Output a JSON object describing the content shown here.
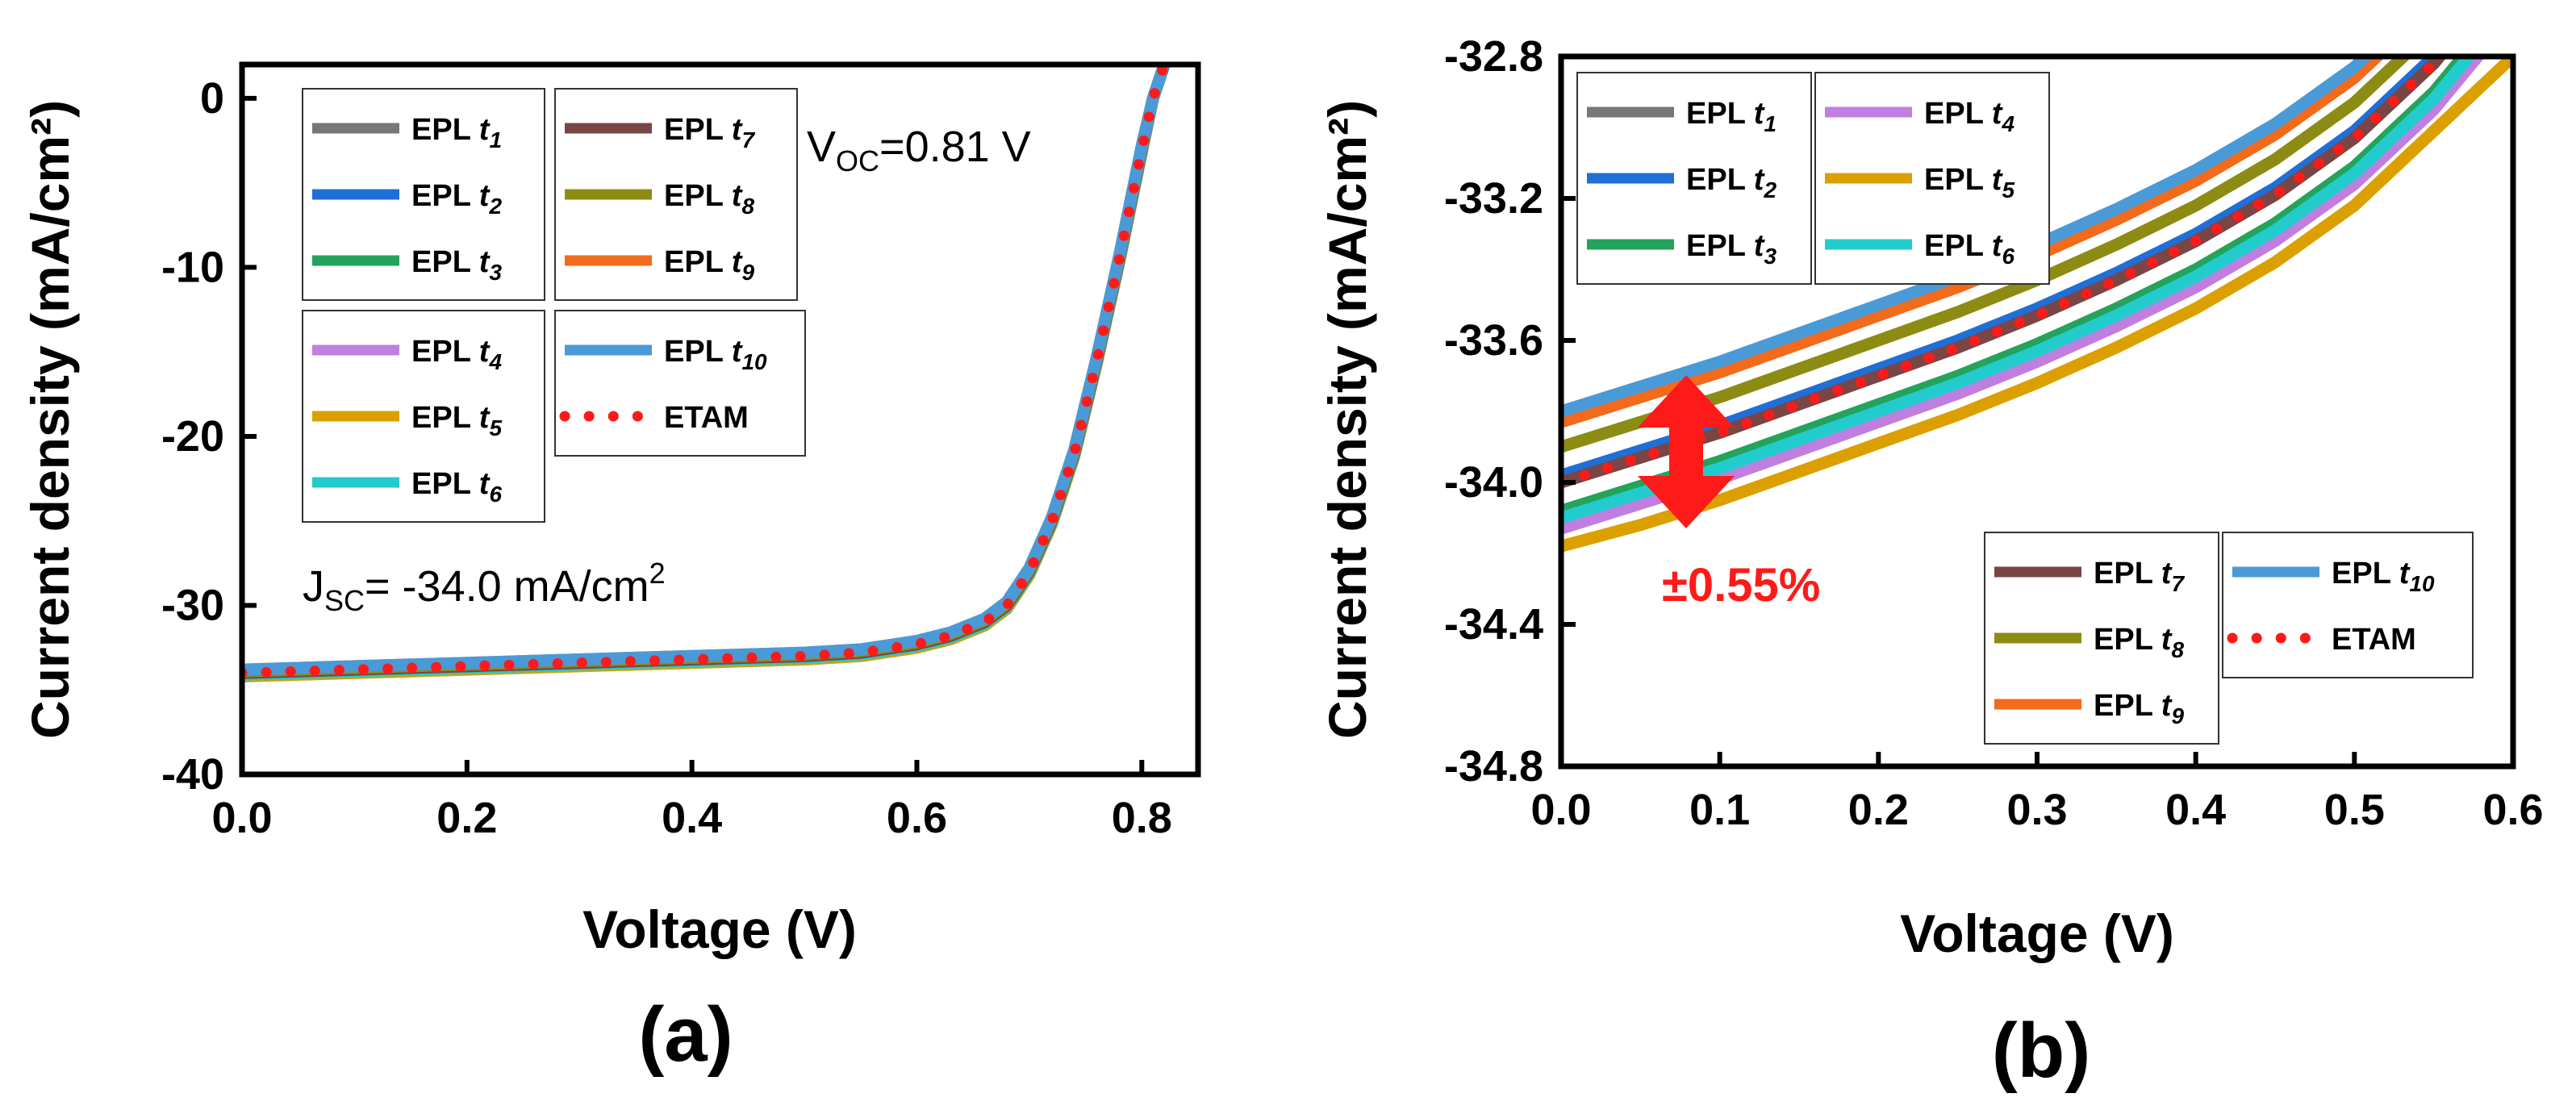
{
  "chart_data": [
    {
      "panel_label": "(a)",
      "type": "line",
      "xlabel": "Voltage (V)",
      "ylabel": "Current density (mA/cm²)",
      "xlim": [
        0.0,
        0.85
      ],
      "ylim": [
        -40,
        2
      ],
      "xticks": [
        "0.0",
        "0.2",
        "0.4",
        "0.6",
        "0.8"
      ],
      "yticks": [
        "0",
        "-10",
        "-20",
        "-30",
        "-40"
      ],
      "annotations": {
        "voc": {
          "main": "V",
          "sub": "OC",
          "rest": "=0.81 V"
        },
        "jsc": {
          "main": "J",
          "sub": "SC",
          "rest": "= -34.0 mA/cm",
          "sup": "2"
        }
      },
      "x": [
        0.0,
        0.1,
        0.2,
        0.3,
        0.4,
        0.5,
        0.55,
        0.6,
        0.63,
        0.66,
        0.68,
        0.7,
        0.72,
        0.74,
        0.76,
        0.78,
        0.8,
        0.81,
        0.82
      ],
      "series": [
        {
          "name": "EPL t1",
          "values": [
            -34.0,
            -33.8,
            -33.6,
            -33.4,
            -33.2,
            -33.0,
            -32.8,
            -32.3,
            -31.8,
            -31.0,
            -30.0,
            -28.0,
            -25.0,
            -21.0,
            -15.5,
            -9.5,
            -3.0,
            0.0,
            2.0
          ]
        },
        {
          "name": "EPL t2",
          "values": [
            -34.0,
            -33.8,
            -33.6,
            -33.4,
            -33.2,
            -33.0,
            -32.8,
            -32.3,
            -31.8,
            -31.0,
            -30.0,
            -28.0,
            -25.0,
            -21.0,
            -15.5,
            -9.5,
            -3.0,
            0.0,
            2.0
          ]
        },
        {
          "name": "EPL t3",
          "values": [
            -34.1,
            -33.9,
            -33.7,
            -33.5,
            -33.3,
            -33.1,
            -32.9,
            -32.4,
            -31.9,
            -31.1,
            -30.1,
            -28.1,
            -25.1,
            -21.1,
            -15.6,
            -9.6,
            -3.1,
            0.0,
            2.0
          ]
        },
        {
          "name": "EPL t4",
          "values": [
            -34.1,
            -33.9,
            -33.7,
            -33.5,
            -33.3,
            -33.1,
            -32.9,
            -32.4,
            -31.9,
            -31.1,
            -30.1,
            -28.1,
            -25.1,
            -21.1,
            -15.6,
            -9.6,
            -3.1,
            0.0,
            2.0
          ]
        },
        {
          "name": "EPL t5",
          "values": [
            -34.2,
            -34.0,
            -33.8,
            -33.6,
            -33.4,
            -33.2,
            -33.0,
            -32.5,
            -32.0,
            -31.2,
            -30.2,
            -28.2,
            -25.2,
            -21.2,
            -15.7,
            -9.7,
            -3.2,
            0.0,
            2.0
          ]
        },
        {
          "name": "EPL t6",
          "values": [
            -34.1,
            -33.9,
            -33.7,
            -33.5,
            -33.3,
            -33.1,
            -32.9,
            -32.4,
            -31.9,
            -31.1,
            -30.1,
            -28.1,
            -25.1,
            -21.1,
            -15.6,
            -9.6,
            -3.1,
            0.0,
            2.0
          ]
        },
        {
          "name": "EPL t7",
          "values": [
            -34.0,
            -33.8,
            -33.6,
            -33.4,
            -33.2,
            -33.0,
            -32.8,
            -32.3,
            -31.8,
            -31.0,
            -30.0,
            -28.0,
            -25.0,
            -21.0,
            -15.5,
            -9.5,
            -3.0,
            0.0,
            2.0
          ]
        },
        {
          "name": "EPL t8",
          "values": [
            -33.9,
            -33.7,
            -33.5,
            -33.3,
            -33.1,
            -32.9,
            -32.7,
            -32.2,
            -31.7,
            -30.9,
            -29.9,
            -27.9,
            -24.9,
            -20.9,
            -15.4,
            -9.4,
            -2.9,
            0.0,
            2.0
          ]
        },
        {
          "name": "EPL t9",
          "values": [
            -33.8,
            -33.6,
            -33.4,
            -33.2,
            -33.0,
            -32.8,
            -32.6,
            -32.1,
            -31.6,
            -30.8,
            -29.8,
            -27.8,
            -24.8,
            -20.8,
            -15.3,
            -9.3,
            -2.8,
            0.0,
            2.0
          ]
        },
        {
          "name": "EPL t10",
          "values": [
            -33.8,
            -33.6,
            -33.4,
            -33.2,
            -33.0,
            -32.8,
            -32.6,
            -32.1,
            -31.6,
            -30.8,
            -29.8,
            -27.8,
            -24.8,
            -20.8,
            -15.3,
            -9.3,
            -2.8,
            0.0,
            2.0
          ]
        },
        {
          "name": "ETAM",
          "style": "dotted",
          "values": [
            -34.0,
            -33.8,
            -33.6,
            -33.4,
            -33.2,
            -33.0,
            -32.8,
            -32.3,
            -31.8,
            -31.0,
            -30.0,
            -28.0,
            -25.0,
            -21.0,
            -15.5,
            -9.5,
            -3.0,
            0.0,
            2.0
          ]
        }
      ]
    },
    {
      "panel_label": "(b)",
      "type": "line",
      "xlabel": "Voltage (V)",
      "ylabel": "Current density (mA/cm²)",
      "xlim": [
        0.0,
        0.6
      ],
      "ylim": [
        -34.8,
        -32.8
      ],
      "xticks": [
        "0.0",
        "0.1",
        "0.2",
        "0.3",
        "0.4",
        "0.5",
        "0.6"
      ],
      "yticks": [
        "-32.8",
        "-33.2",
        "-33.6",
        "-34.0",
        "-34.4",
        "-34.8"
      ],
      "annotations": {
        "spread": "±0.55%"
      },
      "x": [
        0.0,
        0.05,
        0.1,
        0.15,
        0.2,
        0.25,
        0.3,
        0.35,
        0.4,
        0.45,
        0.5,
        0.55,
        0.6
      ],
      "series": [
        {
          "name": "EPL t1",
          "values": [
            -34.0,
            -33.93,
            -33.86,
            -33.78,
            -33.7,
            -33.62,
            -33.53,
            -33.43,
            -33.32,
            -33.19,
            -33.03,
            -32.82,
            -32.55
          ]
        },
        {
          "name": "EPL t2",
          "values": [
            -33.98,
            -33.91,
            -33.84,
            -33.76,
            -33.68,
            -33.6,
            -33.51,
            -33.41,
            -33.3,
            -33.17,
            -33.01,
            -32.8,
            -32.53
          ]
        },
        {
          "name": "EPL t3",
          "values": [
            -34.08,
            -34.01,
            -33.94,
            -33.86,
            -33.78,
            -33.7,
            -33.61,
            -33.51,
            -33.4,
            -33.27,
            -33.11,
            -32.9,
            -32.63
          ]
        },
        {
          "name": "EPL t4",
          "values": [
            -34.13,
            -34.06,
            -33.99,
            -33.91,
            -33.83,
            -33.75,
            -33.66,
            -33.56,
            -33.45,
            -33.32,
            -33.16,
            -32.95,
            -32.68
          ]
        },
        {
          "name": "EPL t5",
          "values": [
            -34.18,
            -34.12,
            -34.05,
            -33.97,
            -33.89,
            -33.81,
            -33.72,
            -33.62,
            -33.51,
            -33.38,
            -33.22,
            -33.01,
            -32.8
          ]
        },
        {
          "name": "EPL t6",
          "values": [
            -34.1,
            -34.03,
            -33.96,
            -33.88,
            -33.8,
            -33.72,
            -33.63,
            -33.53,
            -33.42,
            -33.29,
            -33.13,
            -32.92,
            -32.65
          ]
        },
        {
          "name": "EPL t7",
          "values": [
            -34.0,
            -33.93,
            -33.86,
            -33.78,
            -33.7,
            -33.62,
            -33.53,
            -33.43,
            -33.32,
            -33.19,
            -33.03,
            -32.82,
            -32.55
          ]
        },
        {
          "name": "EPL t8",
          "values": [
            -33.9,
            -33.83,
            -33.76,
            -33.68,
            -33.6,
            -33.52,
            -33.43,
            -33.33,
            -33.22,
            -33.09,
            -32.93,
            -32.72,
            -32.45
          ]
        },
        {
          "name": "EPL t9",
          "values": [
            -33.83,
            -33.76,
            -33.69,
            -33.61,
            -33.53,
            -33.45,
            -33.36,
            -33.26,
            -33.15,
            -33.02,
            -32.86,
            -32.65,
            -32.38
          ]
        },
        {
          "name": "EPL t10",
          "values": [
            -33.8,
            -33.73,
            -33.66,
            -33.58,
            -33.5,
            -33.42,
            -33.33,
            -33.23,
            -33.12,
            -32.99,
            -32.83,
            -32.62,
            -32.35
          ]
        },
        {
          "name": "ETAM",
          "style": "dotted",
          "values": [
            -34.0,
            -33.93,
            -33.86,
            -33.78,
            -33.7,
            -33.62,
            -33.53,
            -33.43,
            -33.32,
            -33.19,
            -33.03,
            -32.82,
            -32.55
          ]
        }
      ]
    }
  ],
  "legend_items": [
    {
      "base": "EPL t",
      "sub": "1",
      "color": "#777777"
    },
    {
      "base": "EPL t",
      "sub": "2",
      "color": "#1f6fd6"
    },
    {
      "base": "EPL t",
      "sub": "3",
      "color": "#23a35c"
    },
    {
      "base": "EPL t",
      "sub": "4",
      "color": "#c07fe0"
    },
    {
      "base": "EPL t",
      "sub": "5",
      "color": "#dba000"
    },
    {
      "base": "EPL t",
      "sub": "6",
      "color": "#22cccc"
    },
    {
      "base": "EPL t",
      "sub": "7",
      "color": "#7a4545"
    },
    {
      "base": "EPL t",
      "sub": "8",
      "color": "#8c8c14"
    },
    {
      "base": "EPL t",
      "sub": "9",
      "color": "#f26a1b"
    },
    {
      "base": "EPL t",
      "sub": "10",
      "color": "#4a9ad8"
    },
    {
      "base": "ETAM",
      "sub": "",
      "color": "#ff1a1a",
      "dotted": true
    }
  ]
}
